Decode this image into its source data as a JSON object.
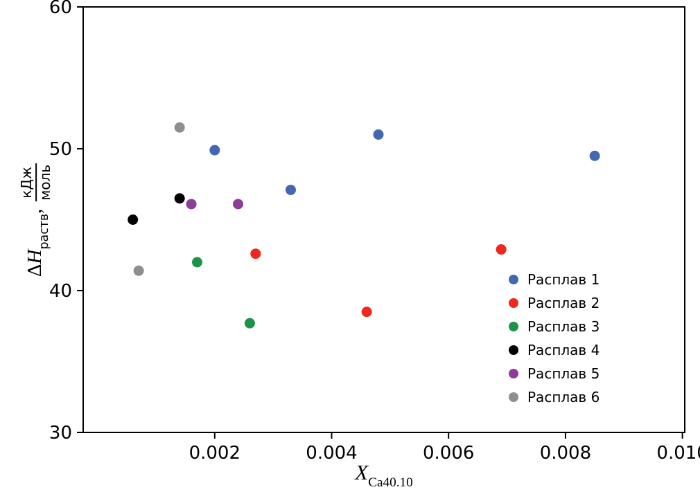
{
  "chart_data": {
    "type": "scatter",
    "title": "",
    "grid": false,
    "legend_position": "lower right",
    "xlabel": {
      "base": "X",
      "sub": "Ca40.10"
    },
    "ylabel": {
      "prefix_delta": "Δ",
      "prefix_h": "H",
      "sub": "раств",
      "sep": ",",
      "frac_num": "кДж",
      "frac_den": "моль"
    },
    "xlim": [
      -0.00025,
      0.01004
    ],
    "ylim": [
      30,
      60
    ],
    "xticks": [
      0.002,
      0.004,
      0.006,
      0.008,
      0.01
    ],
    "xtick_labels": [
      "0.002",
      "0.004",
      "0.006",
      "0.008",
      "0.010"
    ],
    "yticks": [
      30,
      40,
      50,
      60
    ],
    "ytick_labels": [
      "30",
      "40",
      "50",
      "60"
    ],
    "marker": "circle",
    "series": [
      {
        "name": "Расплав 1",
        "color": "#4467b0",
        "points": [
          [
            0.002,
            49.9
          ],
          [
            0.0033,
            47.1
          ],
          [
            0.0048,
            51.0
          ],
          [
            0.0085,
            49.5
          ]
        ]
      },
      {
        "name": "Расплав 2",
        "color": "#f0271c",
        "points": [
          [
            0.0027,
            42.6
          ],
          [
            0.0046,
            38.5
          ],
          [
            0.0069,
            42.9
          ]
        ]
      },
      {
        "name": "Расплав 3",
        "color": "#1d9249",
        "points": [
          [
            0.0017,
            42.0
          ],
          [
            0.0026,
            37.7
          ]
        ]
      },
      {
        "name": "Расплав 4",
        "color": "#000000",
        "points": [
          [
            0.0006,
            45.0
          ],
          [
            0.0014,
            46.5
          ]
        ]
      },
      {
        "name": "Расплав 5",
        "color": "#8e3d98",
        "points": [
          [
            0.0016,
            46.1
          ],
          [
            0.0024,
            46.1
          ]
        ]
      },
      {
        "name": "Расплав 6",
        "color": "#8e8e8e",
        "points": [
          [
            0.0007,
            41.4
          ],
          [
            0.0014,
            51.5
          ]
        ]
      }
    ]
  }
}
